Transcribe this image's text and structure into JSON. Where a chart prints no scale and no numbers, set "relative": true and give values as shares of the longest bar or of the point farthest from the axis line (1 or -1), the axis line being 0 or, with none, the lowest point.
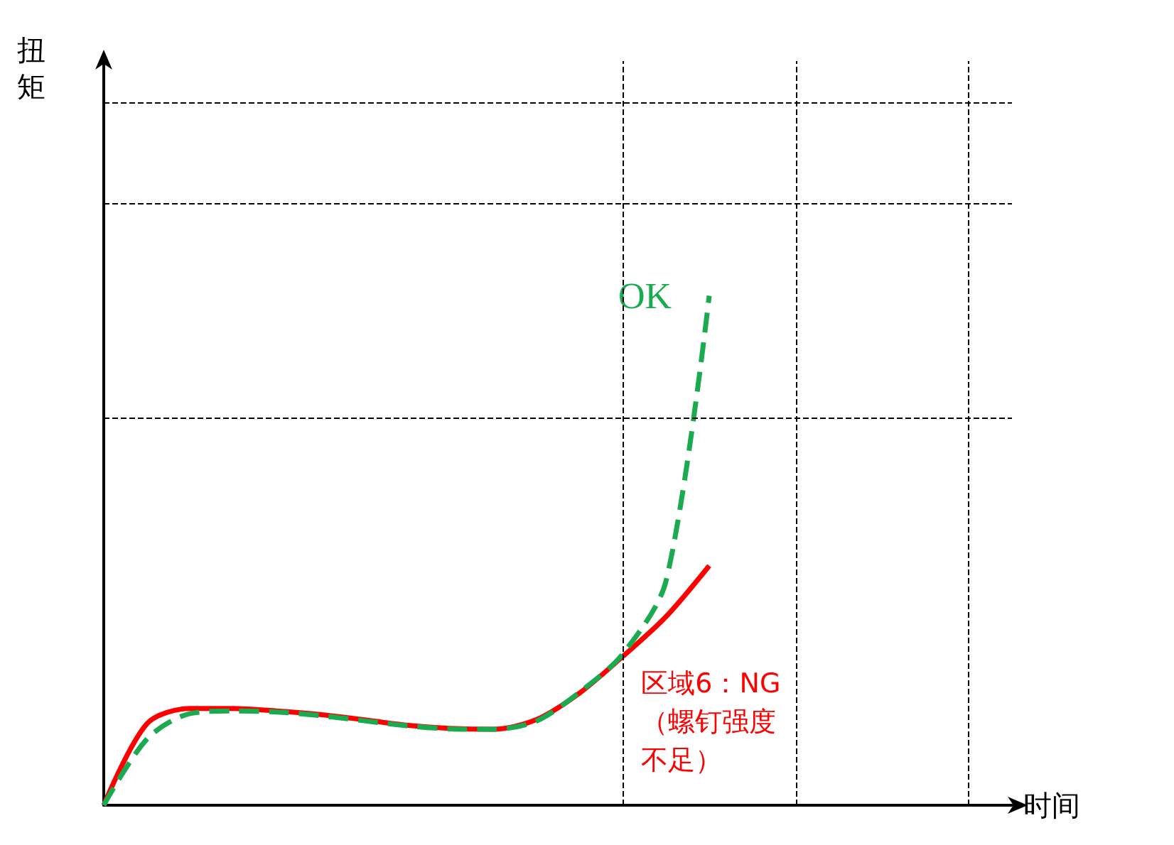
{
  "chart_data": {
    "type": "line",
    "relative": true,
    "xlabel": "时间",
    "grid": "x",
    "marker": "none",
    "categories": [
      null,
      null,
      null,
      null,
      null,
      null,
      null,
      null,
      null,
      null,
      null,
      null,
      null,
      null,
      null,
      null,
      null,
      null,
      null,
      null,
      null,
      null
    ],
    "series": [
      {
        "color": "#ff0000",
        "line_style": "solid",
        "values": [
          0,
          0.16,
          0.19,
          0.19,
          0.185,
          0.178,
          0.168,
          0.157,
          0.151,
          0.149,
          0.168,
          0.22,
          0.292,
          0.37,
          0.47,
          null,
          null,
          null,
          null,
          null,
          null,
          null
        ]
      },
      {
        "name": "OK",
        "color": "#1aaa50",
        "line_style": "dashed",
        "values": [
          0,
          0.13,
          0.18,
          0.185,
          0.183,
          0.176,
          0.166,
          0.156,
          0.15,
          0.149,
          0.165,
          0.222,
          0.297,
          0.44,
          1,
          null,
          null,
          null,
          null,
          null,
          null,
          null
        ]
      }
    ],
    "ref_lines": [
      {
        "axis": "y",
        "value": 1.378,
        "color": "#000000",
        "line_style": "dashed"
      },
      {
        "axis": "y",
        "value": 1.18,
        "color": "#000000",
        "line_style": "dashed"
      },
      {
        "axis": "y",
        "value": 0.757,
        "color": "#000000",
        "line_style": "dashed"
      }
    ],
    "annotations": [
      "扭矩",
      "区域6：NG（螺钉强度不足）"
    ]
  }
}
